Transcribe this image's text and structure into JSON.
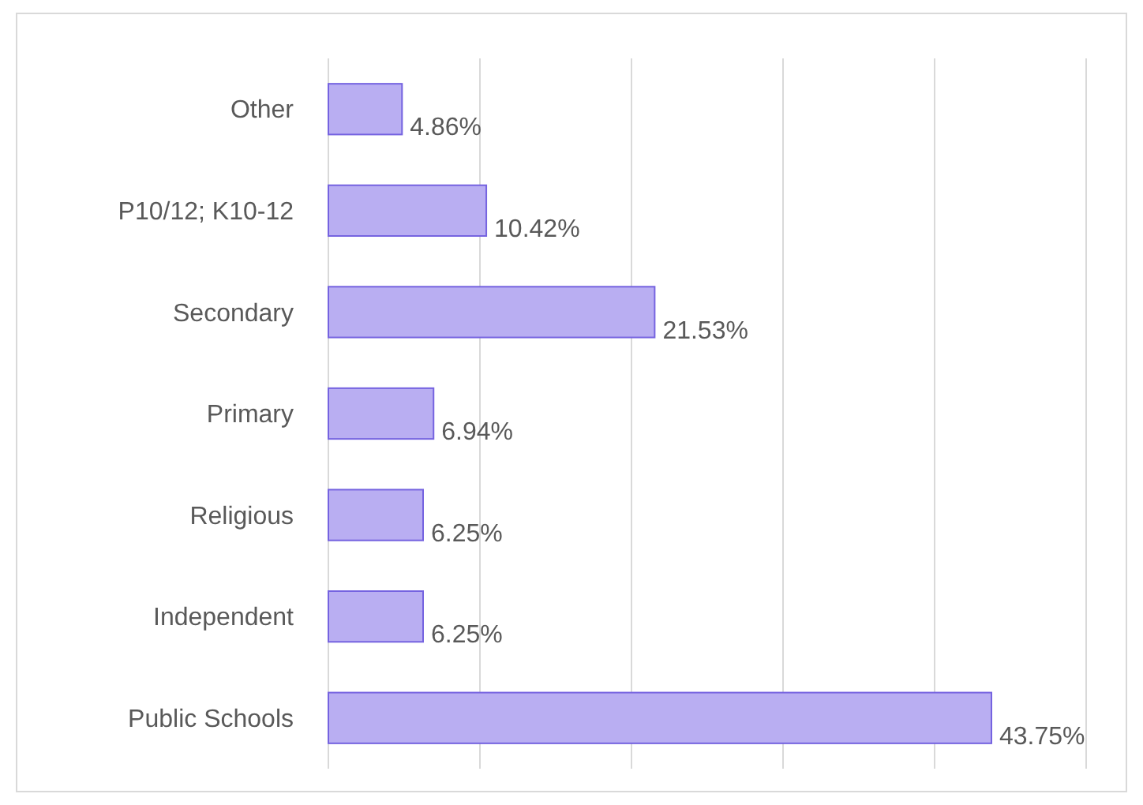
{
  "chart_data": {
    "type": "bar",
    "orientation": "horizontal",
    "categories": [
      "Other",
      "P10/12; K10-12",
      "Secondary",
      "Primary",
      "Religious",
      "Independent",
      "Public Schools"
    ],
    "values": [
      4.86,
      10.42,
      21.53,
      6.94,
      6.25,
      6.25,
      43.75
    ],
    "value_labels": [
      "4.86%",
      "10.42%",
      "21.53%",
      "6.94%",
      "6.25%",
      "6.25%",
      "43.75%"
    ],
    "color": "#b9aef2",
    "xlim": [
      0,
      50
    ],
    "xticks": [
      {
        "value": 0,
        "label": null
      },
      {
        "value": 10,
        "label": null
      },
      {
        "value": 20,
        "label": null
      },
      {
        "value": 30,
        "label": null
      },
      {
        "value": 40,
        "label": null
      },
      {
        "value": 50,
        "label": null
      }
    ],
    "grid": "x",
    "tick_labels": "y"
  }
}
